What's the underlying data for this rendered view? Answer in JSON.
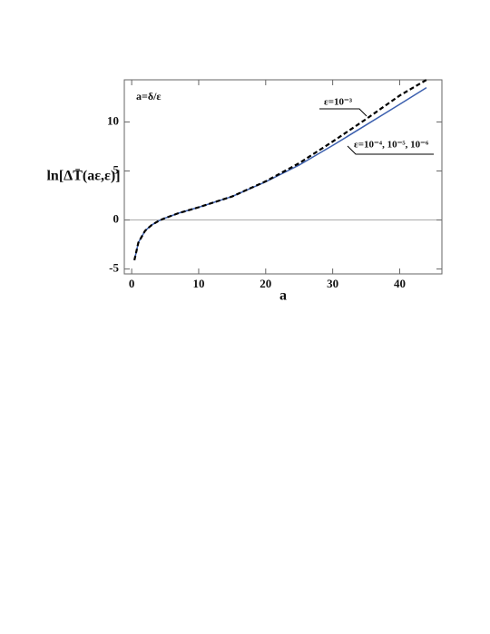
{
  "chart_data": {
    "type": "line",
    "y_label": "ln[ΔT̄(aε,ε)]",
    "x_label": "a",
    "annotations": [
      "a=δ/ε",
      "ε=10⁻³",
      "ε=10⁻⁴, 10⁻⁵, 10⁻⁶"
    ],
    "x": [
      0.4,
      1,
      2,
      3,
      4,
      5,
      7,
      10,
      15,
      20,
      25,
      30,
      35,
      40,
      44
    ],
    "series": [
      {
        "name": "ε=10⁻⁴, 10⁻⁵, 10⁻⁶",
        "color": "#3b5fae",
        "dash": false,
        "values": [
          -4.1,
          -2.3,
          -1.1,
          -0.5,
          -0.1,
          0.2,
          0.7,
          1.3,
          2.4,
          3.9,
          5.6,
          7.6,
          9.7,
          11.8,
          13.5
        ]
      },
      {
        "name": "ε=10⁻³",
        "color": "#000000",
        "dash": true,
        "values": [
          -4.1,
          -2.3,
          -1.1,
          -0.5,
          -0.1,
          0.2,
          0.7,
          1.3,
          2.4,
          3.95,
          5.8,
          8.0,
          10.3,
          12.7,
          14.3
        ]
      }
    ],
    "xlim": [
      -1.1,
      46.3
    ],
    "ylim": [
      -5.5,
      14.3
    ],
    "xticks": [
      0,
      10,
      20,
      30,
      40
    ],
    "yticks": [
      -5,
      0,
      5,
      10
    ]
  }
}
